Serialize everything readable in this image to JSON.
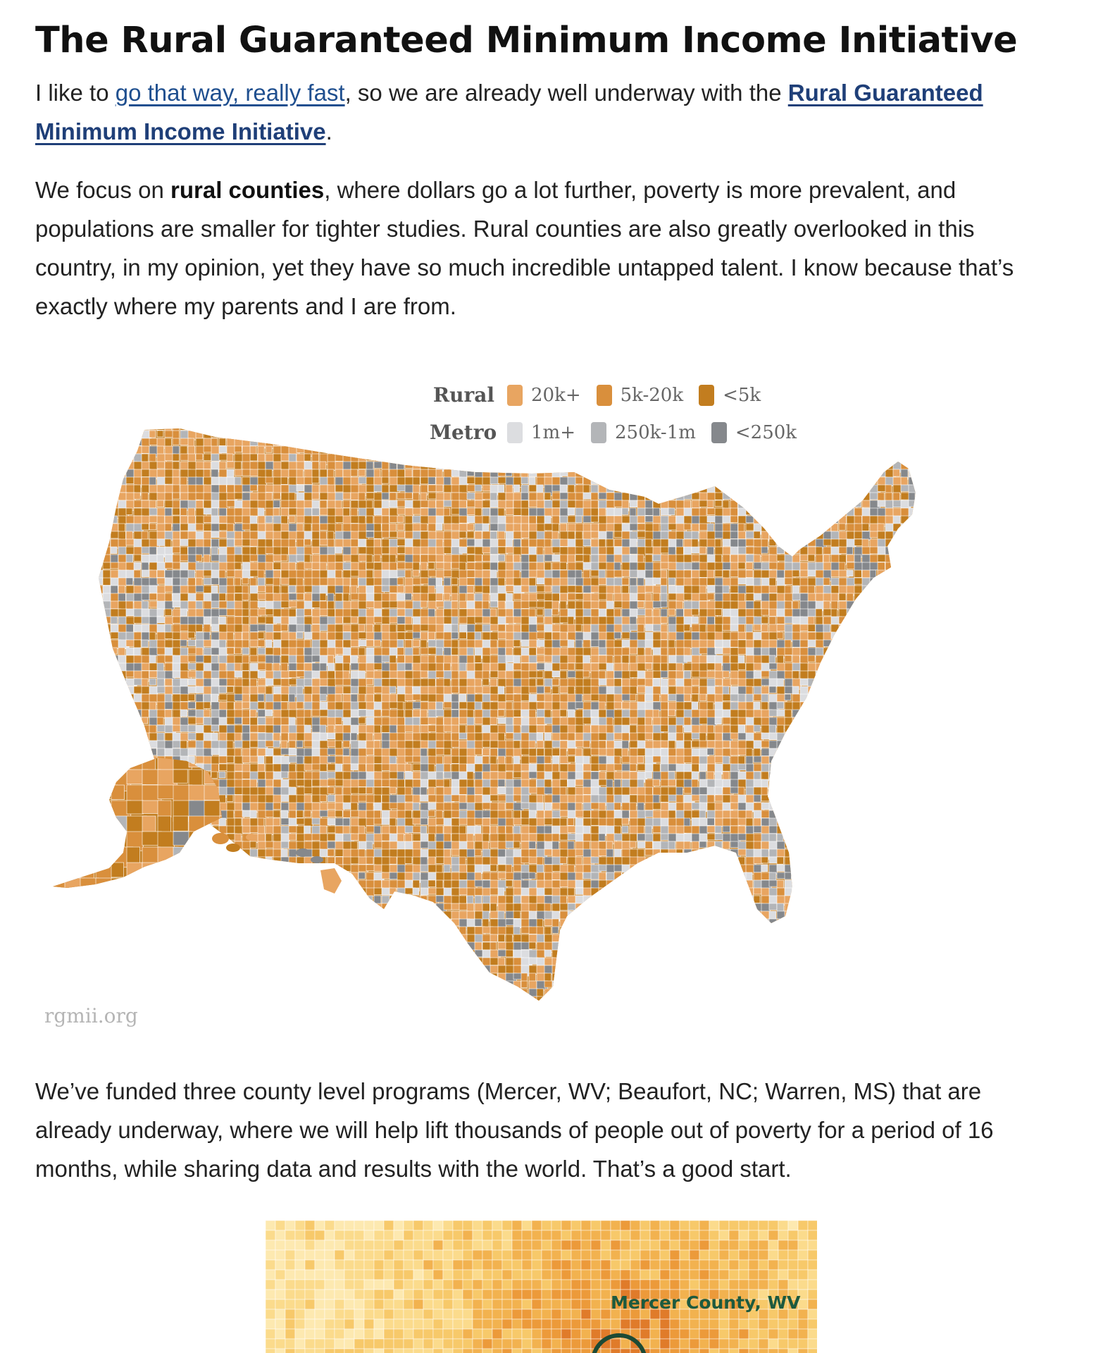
{
  "article": {
    "title": "The Rural Guaranteed Minimum Income Initiative",
    "intro": {
      "before_link": "I like to ",
      "link1": "go that way, really fast",
      "middle": ", so we are already well underway with the ",
      "link2": "Rural Guaranteed Minimum Income Initiative",
      "after": "."
    },
    "focus": {
      "before_bold": "We focus on ",
      "bold": "rural counties",
      "after_bold": ", where dollars go a lot further, poverty is more prevalent, and populations are smaller for tighter studies. Rural counties are also greatly overlooked in this country, in my opinion, yet they have so much incredible untapped talent. I know because that’s exactly where my parents and I are from."
    },
    "programs": "We’ve funded three county level programs (Mercer, WV; Beaufort, NC; Warren, MS) that are already underway, where we will help lift thousands of people out of poverty for a period of 16 months, while sharing data and results with the world. That’s a good start."
  },
  "map": {
    "legend": {
      "rural_title": "Rural",
      "rural_items": [
        {
          "label": "20k+",
          "color": "#e8a561"
        },
        {
          "label": "5k-20k",
          "color": "#d98f3c"
        },
        {
          "label": "<5k",
          "color": "#c27d1f"
        }
      ],
      "metro_title": "Metro",
      "metro_items": [
        {
          "label": "1m+",
          "color": "#dcdde0"
        },
        {
          "label": "250k-1m",
          "color": "#b3b5b8"
        },
        {
          "label": "<250k",
          "color": "#85888c"
        }
      ]
    },
    "credit": "rgmii.org"
  },
  "mercer_map": {
    "label": "Mercer County, WV"
  }
}
